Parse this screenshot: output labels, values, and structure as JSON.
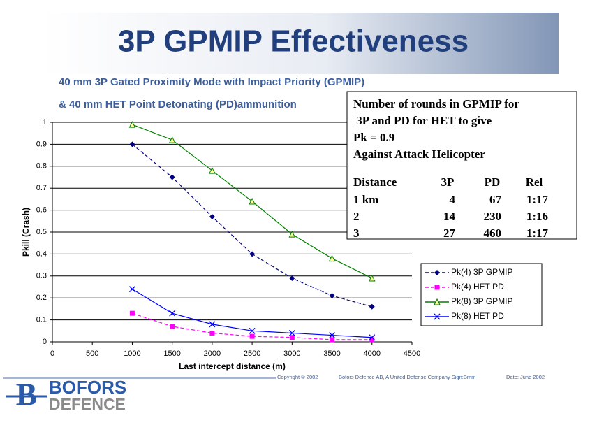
{
  "header": {
    "title": "3P GPMIP Effectiveness",
    "subtitle": [
      "40 mm 3P Gated Proximity Mode with Impact Priority (GPMIP)",
      "& 40 mm HET Point Detonating (PD)ammunition"
    ]
  },
  "chart_data": {
    "type": "line",
    "x_label": "Last intercept distance (m)",
    "y_label": "Pkill (Crash)",
    "x": [
      1000,
      1500,
      2000,
      2500,
      3000,
      3500,
      4000
    ],
    "series": [
      {
        "name": "Pk(4) 3P GPMIP",
        "color": "#000080",
        "dash": true,
        "marker": "diamond",
        "values": [
          0.9,
          0.75,
          0.57,
          0.4,
          0.29,
          0.21,
          0.16
        ]
      },
      {
        "name": "Pk(4) HET PD",
        "color": "#ff00ff",
        "dash": true,
        "marker": "square",
        "values": [
          0.13,
          0.07,
          0.04,
          0.025,
          0.02,
          0.01,
          0.01
        ]
      },
      {
        "name": "Pk(8) 3P GPMIP",
        "color": "#008000",
        "dash": false,
        "marker": "triangle",
        "values": [
          0.99,
          0.92,
          0.78,
          0.64,
          0.49,
          0.38,
          0.29
        ]
      },
      {
        "name": "Pk(8) HET PD",
        "color": "#0000ff",
        "dash": false,
        "marker": "x",
        "values": [
          0.24,
          0.13,
          0.08,
          0.05,
          0.04,
          0.03,
          0.02
        ]
      }
    ],
    "xlim": [
      0,
      4500
    ],
    "xticks": [
      0,
      500,
      1000,
      1500,
      2000,
      2500,
      3000,
      3500,
      4000,
      4500
    ],
    "ylim": [
      0,
      1
    ],
    "yticks": [
      0,
      0.1,
      0.2,
      0.3,
      0.4,
      0.5,
      0.6,
      0.7,
      0.8,
      0.9,
      1
    ],
    "grid": true,
    "legend": "lower right"
  },
  "info_box": {
    "lines": [
      "Number of rounds in GPMIP for",
      " 3P and PD for HET to give",
      "Pk = 0.9",
      "Against Attack Helicopter"
    ],
    "table": {
      "columns": [
        "Distance",
        "3P",
        "PD",
        "Rel"
      ],
      "rows": [
        [
          "1 km",
          4,
          67,
          "1:17"
        ],
        [
          "2",
          14,
          230,
          "1:16"
        ],
        [
          "3",
          27,
          460,
          "1:17"
        ]
      ]
    }
  },
  "footer": {
    "copyright": "Copyright ©  2002",
    "company": "Bofors Defence AB,  A United Defense Company  Sign:Bmm",
    "date": "Date:  June 2002"
  },
  "logo": {
    "emblem": "B",
    "name": "BOFORS",
    "subname": "DEFENCE"
  }
}
